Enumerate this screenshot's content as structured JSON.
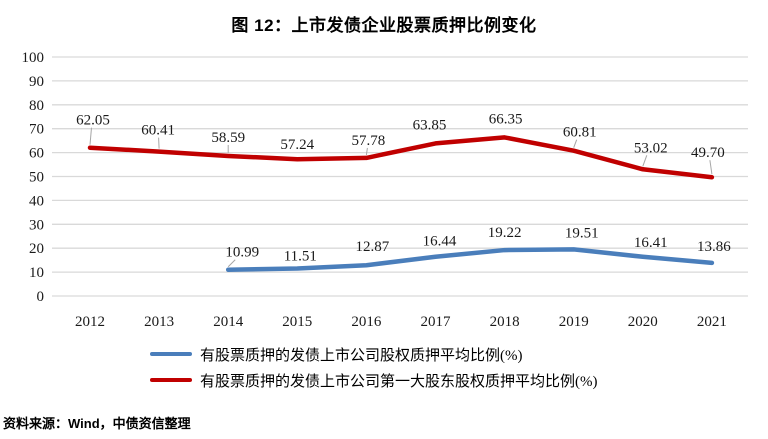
{
  "title": "图 12：上市发债企业股票质押比例变化",
  "source_note": "资料来源：Wind，中债资信整理",
  "chart_data": {
    "type": "line",
    "title": "图 12：上市发债企业股票质押比例变化",
    "categories": [
      "2012",
      "2013",
      "2014",
      "2015",
      "2016",
      "2017",
      "2018",
      "2019",
      "2020",
      "2021"
    ],
    "xlabel": "",
    "ylabel": "",
    "ylim": [
      0,
      100
    ],
    "ytick_step": 10,
    "grid": true,
    "legend_position": "bottom-left",
    "colors": {
      "grid": "#D9D9D9",
      "leader": "#A6A6A6",
      "text": "#1a1a1a"
    },
    "series": [
      {
        "name": "有股票质押的发债上市公司股权质押平均比例(%)",
        "color": "#4A7EBB",
        "start_index": 2,
        "values": [
          10.99,
          11.51,
          12.87,
          16.44,
          19.22,
          19.51,
          16.41,
          13.86
        ],
        "label_offsets": [
          [
            14,
            -18,
            1
          ],
          [
            3,
            -13,
            0
          ],
          [
            6,
            -19,
            0
          ],
          [
            4,
            -16,
            0
          ],
          [
            0,
            -18,
            0
          ],
          [
            8,
            -17,
            0
          ],
          [
            8,
            -15,
            0
          ],
          [
            2,
            -17,
            0
          ]
        ]
      },
      {
        "name": "有股票质押的发债上市公司第一大股东股权质押平均比例(%)",
        "color": "#C00000",
        "start_index": 0,
        "values": [
          62.05,
          60.41,
          58.59,
          57.24,
          57.78,
          63.85,
          66.35,
          60.81,
          53.02,
          49.7
        ],
        "label_offsets": [
          [
            3,
            -28,
            1
          ],
          [
            -1,
            -22,
            1
          ],
          [
            0,
            -19,
            1
          ],
          [
            0,
            -15,
            0
          ],
          [
            2,
            -18,
            1
          ],
          [
            -6,
            -19,
            0
          ],
          [
            1,
            -19,
            0
          ],
          [
            6,
            -19,
            1
          ],
          [
            8,
            -22,
            1
          ],
          [
            -4,
            -25,
            1
          ]
        ]
      }
    ]
  }
}
